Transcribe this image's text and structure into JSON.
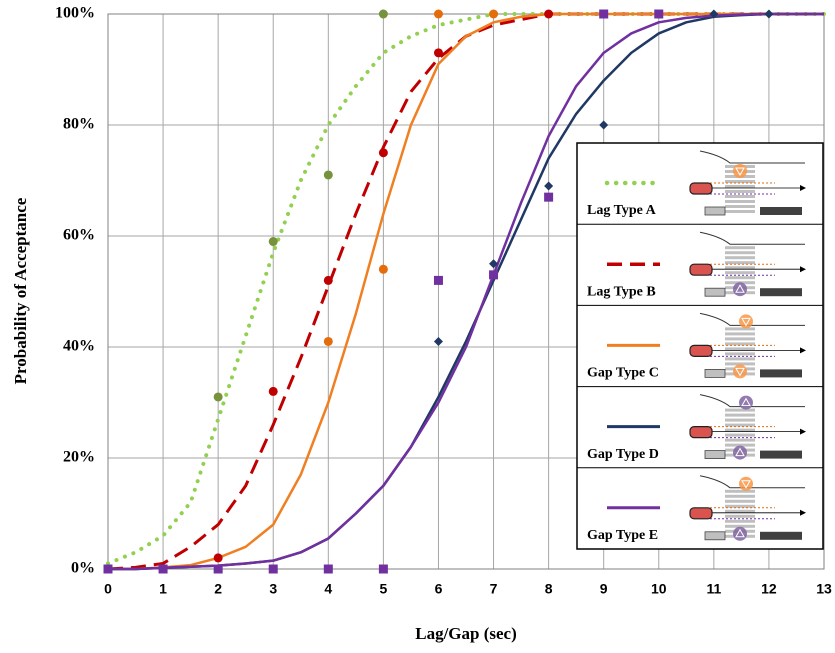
{
  "chart_data": {
    "type": "line",
    "x_label": "Lag/Gap (sec)",
    "y_label": "Probability of Acceptance",
    "xlim": [
      0,
      13
    ],
    "ylim": [
      0,
      100
    ],
    "xticks": [
      0,
      1,
      2,
      3,
      4,
      5,
      6,
      7,
      8,
      9,
      10,
      11,
      12,
      13
    ],
    "yticks": [
      {
        "value": 0,
        "label": "0%"
      },
      {
        "value": 20,
        "label": "20%"
      },
      {
        "value": 40,
        "label": "40%"
      },
      {
        "value": 60,
        "label": "60%"
      },
      {
        "value": 80,
        "label": "80%"
      },
      {
        "value": 100,
        "label": "100%"
      }
    ],
    "grid": true,
    "legend": "lower right",
    "x": [
      0,
      0.5,
      1,
      1.5,
      2,
      2.5,
      3,
      3.5,
      4,
      4.5,
      5,
      5.5,
      6,
      6.5,
      7,
      7.5,
      8,
      8.5,
      9,
      9.5,
      10,
      10.5,
      11,
      11.5,
      12,
      12.5,
      13
    ],
    "series": [
      {
        "name": "Lag Type A",
        "color": "#92d050",
        "point_color": "#76923c",
        "dash": "dotted",
        "marker": "circle",
        "values": [
          1,
          3,
          6,
          12,
          27,
          42,
          57,
          70,
          80,
          87,
          93,
          96,
          98,
          99,
          100,
          100,
          100,
          100,
          100,
          100,
          100,
          100,
          100,
          100,
          100,
          100,
          100
        ],
        "points_x": [
          0,
          2,
          3,
          4,
          5
        ],
        "points": [
          0,
          31,
          59,
          71,
          100
        ]
      },
      {
        "name": "Lag Type B",
        "color": "#c00000",
        "point_color": "#c00000",
        "dash": "dashed",
        "marker": "circle",
        "values": [
          0,
          0.3,
          1,
          4,
          8,
          15,
          26,
          38,
          51,
          64,
          76,
          86,
          92,
          96,
          98,
          99,
          100,
          100,
          100,
          100,
          100,
          100,
          100,
          100,
          100,
          100,
          100
        ],
        "points_x": [
          0,
          1,
          2,
          3,
          4,
          5,
          6,
          8
        ],
        "points": [
          0,
          0,
          2,
          32,
          52,
          75,
          93,
          100
        ]
      },
      {
        "name": "Gap Type C",
        "color": "#f07f22",
        "point_color": "#e46c0a",
        "dash": "solid",
        "marker": "circle",
        "values": [
          0,
          0,
          0.3,
          0.7,
          2,
          4,
          8,
          17,
          30,
          46,
          64,
          80,
          91,
          96,
          98.5,
          99.5,
          100,
          100,
          100,
          100,
          100,
          100,
          100,
          100,
          100,
          100,
          100
        ],
        "points_x": [
          0,
          4,
          5,
          6,
          7
        ],
        "points": [
          0,
          41,
          54,
          100,
          100
        ]
      },
      {
        "name": "Gap Type D",
        "color": "#1f3864",
        "point_color": "#1f3864",
        "dash": "solid",
        "marker": "diamond",
        "values": [
          0,
          0,
          0.2,
          0.4,
          0.6,
          1,
          1.5,
          3,
          5.5,
          10,
          15,
          22,
          31,
          41,
          52,
          63,
          74,
          82,
          88,
          93,
          96.5,
          98.5,
          99.5,
          99.8,
          100,
          100,
          100
        ],
        "points_x": [
          0,
          6,
          7,
          8,
          9,
          11,
          12
        ],
        "points": [
          0,
          41,
          55,
          69,
          80,
          100,
          100
        ]
      },
      {
        "name": "Gap Type E",
        "color": "#7030a0",
        "point_color": "#7030a0",
        "dash": "solid",
        "marker": "square",
        "values": [
          0,
          0,
          0.2,
          0.4,
          0.6,
          1,
          1.5,
          3,
          5.5,
          10,
          15,
          22,
          30,
          40,
          53,
          66,
          78,
          87,
          93,
          96.5,
          98.5,
          99.3,
          99.7,
          99.9,
          100,
          100,
          100
        ],
        "points_x": [
          0,
          1,
          2,
          3,
          4,
          5,
          6,
          7,
          8,
          9,
          10
        ],
        "points": [
          0,
          0,
          0,
          0,
          0,
          0,
          52,
          53,
          67,
          100,
          100
        ]
      }
    ]
  }
}
